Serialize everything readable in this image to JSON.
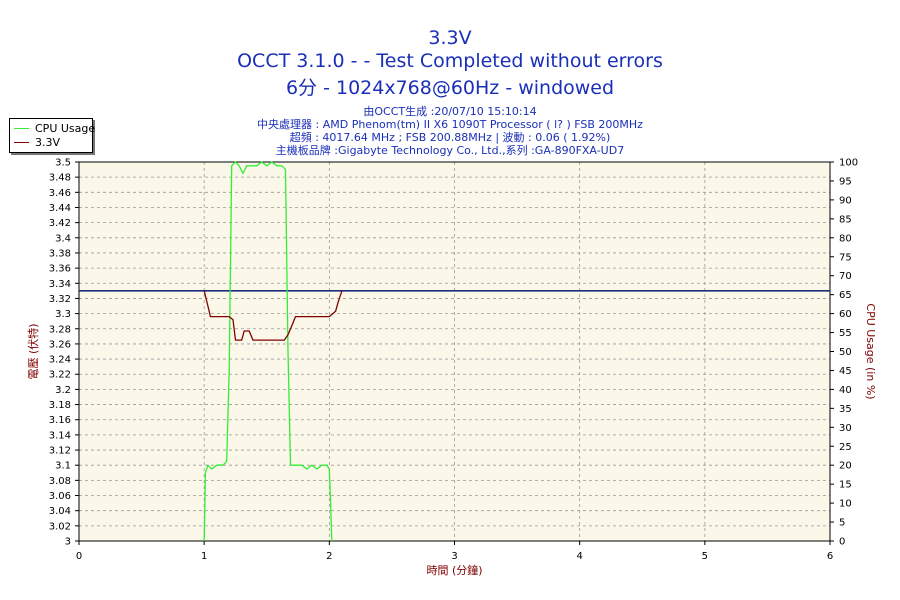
{
  "header": {
    "title": "3.3V",
    "subtitle": "OCCT 3.1.0 -  - Test Completed without errors",
    "mode": "6分 - 1024x768@60Hz - windowed"
  },
  "info": {
    "generated": "由OCCT生成 :20/07/10 15:10:14",
    "cpu": "中央處理器 : AMD Phenom(tm) II X6 1090T Processor (   l? ) FSB 200MHz",
    "freq": "超頻 : 4017.64 MHz ; FSB 200.88MHz | 波動 : 0.06 ( 1.92%)",
    "board": "主機板品牌 :Gigabyte Technology Co., Ltd.,系列 :GA-890FXA-UD7"
  },
  "legend": {
    "items": [
      {
        "label": "CPU Usage",
        "color": "#33ee33"
      },
      {
        "label": "3.3V",
        "color": "#800000"
      }
    ]
  },
  "chart_data": {
    "type": "line",
    "xlabel": "時間 (分鐘)",
    "ylabel_left": "電壓 (伏特)",
    "ylabel_right": "CPU Usage (in %)",
    "xlim": [
      0,
      6
    ],
    "xticks": [
      0,
      1,
      2,
      3,
      4,
      5,
      6
    ],
    "ylim_left": [
      3.0,
      3.5
    ],
    "yticks_left": [
      "3",
      "3.02",
      "3.04",
      "3.06",
      "3.08",
      "3.1",
      "3.12",
      "3.14",
      "3.16",
      "3.18",
      "3.2",
      "3.22",
      "3.24",
      "3.26",
      "3.28",
      "3.3",
      "3.32",
      "3.34",
      "3.36",
      "3.38",
      "3.4",
      "3.42",
      "3.44",
      "3.46",
      "3.48",
      "3.5"
    ],
    "ylim_right": [
      0,
      100
    ],
    "yticks_right": [
      "0",
      "5",
      "10",
      "15",
      "20",
      "25",
      "30",
      "35",
      "40",
      "45",
      "50",
      "55",
      "60",
      "65",
      "70",
      "75",
      "80",
      "85",
      "90",
      "95",
      "100"
    ],
    "grid": true,
    "legend_position": "top-left",
    "colors": {
      "plot_bg": "#fbf8ea",
      "grid": "#999999",
      "title": "#1a2fb8",
      "axis_label": "#800000",
      "reference": "#1a2f7a"
    },
    "reference_line": {
      "axis": "left",
      "value": 3.33
    },
    "series": [
      {
        "name": "CPU Usage",
        "axis": "right",
        "color": "#33ee33",
        "points": [
          [
            1.0,
            0
          ],
          [
            1.01,
            18
          ],
          [
            1.03,
            20
          ],
          [
            1.06,
            19
          ],
          [
            1.1,
            20
          ],
          [
            1.15,
            20
          ],
          [
            1.18,
            21
          ],
          [
            1.2,
            45
          ],
          [
            1.22,
            99
          ],
          [
            1.25,
            100
          ],
          [
            1.28,
            99
          ],
          [
            1.31,
            97
          ],
          [
            1.34,
            99
          ],
          [
            1.38,
            99
          ],
          [
            1.42,
            99
          ],
          [
            1.46,
            100
          ],
          [
            1.5,
            99
          ],
          [
            1.54,
            100
          ],
          [
            1.58,
            99
          ],
          [
            1.62,
            99
          ],
          [
            1.65,
            98
          ],
          [
            1.67,
            50
          ],
          [
            1.69,
            20
          ],
          [
            1.73,
            20
          ],
          [
            1.78,
            20
          ],
          [
            1.82,
            19
          ],
          [
            1.86,
            20
          ],
          [
            1.9,
            19
          ],
          [
            1.94,
            20
          ],
          [
            1.98,
            20
          ],
          [
            2.0,
            19
          ],
          [
            2.01,
            10
          ],
          [
            2.02,
            0
          ]
        ]
      },
      {
        "name": "3.3V",
        "axis": "left",
        "color": "#800000",
        "points": [
          [
            1.0,
            3.33
          ],
          [
            1.03,
            3.31
          ],
          [
            1.05,
            3.296
          ],
          [
            1.12,
            3.296
          ],
          [
            1.2,
            3.296
          ],
          [
            1.23,
            3.292
          ],
          [
            1.25,
            3.265
          ],
          [
            1.3,
            3.265
          ],
          [
            1.32,
            3.277
          ],
          [
            1.36,
            3.277
          ],
          [
            1.39,
            3.265
          ],
          [
            1.45,
            3.265
          ],
          [
            1.55,
            3.265
          ],
          [
            1.64,
            3.265
          ],
          [
            1.67,
            3.272
          ],
          [
            1.7,
            3.284
          ],
          [
            1.73,
            3.296
          ],
          [
            1.8,
            3.296
          ],
          [
            1.9,
            3.296
          ],
          [
            2.0,
            3.296
          ],
          [
            2.05,
            3.303
          ],
          [
            2.07,
            3.315
          ],
          [
            2.1,
            3.33
          ]
        ]
      }
    ]
  }
}
